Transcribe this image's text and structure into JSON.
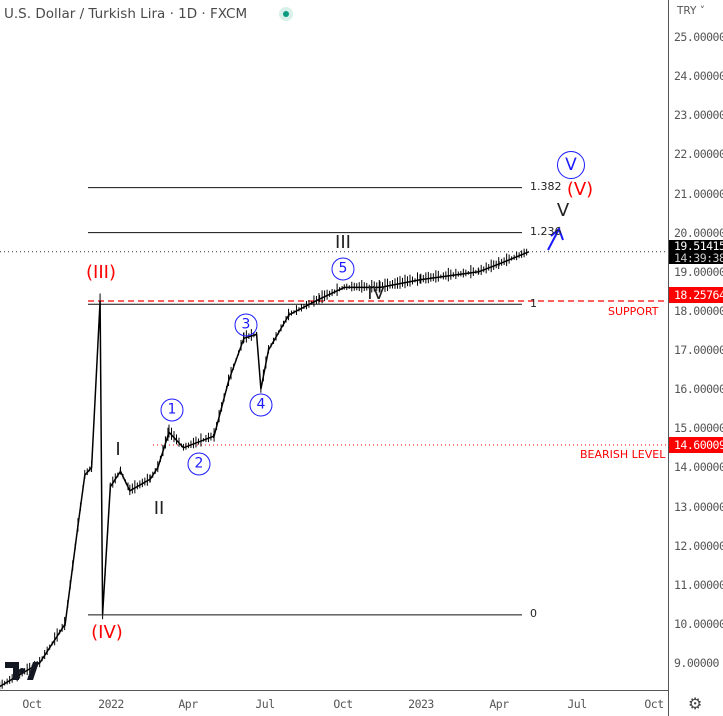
{
  "header": {
    "title": "U.S. Dollar / Turkish Lira · 1D · FXCM",
    "currency": "TRY"
  },
  "chart_data": {
    "type": "line",
    "title": "U.S. Dollar / Turkish Lira · 1D · FXCM",
    "xlabel": "",
    "ylabel": "",
    "ylim": [
      8.5,
      25.5
    ],
    "y_ticks": [
      "25.00000",
      "24.00000",
      "23.00000",
      "22.00000",
      "21.00000",
      "20.00000",
      "19.00000",
      "18.00000",
      "17.00000",
      "16.00000",
      "15.00000",
      "14.00000",
      "13.00000",
      "12.00000",
      "11.00000",
      "10.00000",
      "9.00000"
    ],
    "x_ticks": [
      "Oct",
      "2022",
      "Apr",
      "Jul",
      "Oct",
      "2023",
      "Apr",
      "Jul",
      "Oct"
    ],
    "grid": false,
    "series": [
      {
        "name": "USDTRY",
        "points": [
          [
            "2021-08-24",
            8.4
          ],
          [
            "2021-10-10",
            9.0
          ],
          [
            "2021-11-09",
            10.0
          ],
          [
            "2021-11-24",
            12.5
          ],
          [
            "2021-12-02",
            13.8
          ],
          [
            "2021-12-10",
            14.0
          ],
          [
            "2021-12-20",
            18.25
          ],
          [
            "2021-12-23",
            10.25
          ],
          [
            "2022-01-01",
            13.5
          ],
          [
            "2022-01-13",
            13.9
          ],
          [
            "2022-01-24",
            13.4
          ],
          [
            "2022-02-17",
            13.7
          ],
          [
            "2022-02-26",
            14.0
          ],
          [
            "2022-03-11",
            14.9
          ],
          [
            "2022-03-28",
            14.5
          ],
          [
            "2022-05-03",
            14.8
          ],
          [
            "2022-05-20",
            16.2
          ],
          [
            "2022-06-07",
            17.3
          ],
          [
            "2022-06-22",
            17.4
          ],
          [
            "2022-06-27",
            16.0
          ],
          [
            "2022-07-06",
            17.0
          ],
          [
            "2022-07-30",
            17.9
          ],
          [
            "2022-09-04",
            18.3
          ],
          [
            "2022-10-03",
            18.6
          ],
          [
            "2022-11-14",
            18.6
          ],
          [
            "2023-01-01",
            18.8
          ],
          [
            "2023-03-10",
            19.0
          ],
          [
            "2023-04-03",
            19.2
          ],
          [
            "2023-05-08",
            19.51
          ]
        ]
      }
    ],
    "last_price": {
      "value": "19.51415",
      "countdown": "14:39:38"
    },
    "levels": [
      {
        "name": "support",
        "value": "18.25764",
        "label": "SUPPORT",
        "color": "#ff0000"
      },
      {
        "name": "bearish",
        "value": "14.60009",
        "label": "BEARISH LEVEL",
        "color": "#ff0000"
      }
    ],
    "fib_levels": [
      {
        "ratio": "1.382",
        "price": 21.15
      },
      {
        "ratio": "1.236",
        "price": 20.0
      },
      {
        "ratio": "1",
        "price": 18.17
      },
      {
        "ratio": "0",
        "price": 10.23
      }
    ],
    "annotations": {
      "red": [
        "(III)",
        "(IV)",
        "(V)"
      ],
      "black": [
        "I",
        "II",
        "III",
        "IV",
        "V"
      ],
      "circled": [
        "1",
        "2",
        "3",
        "4",
        "5",
        "V"
      ]
    }
  },
  "colors": {
    "wave_blue": "#1a1aff",
    "red": "#ff0000",
    "price": "#000000"
  }
}
